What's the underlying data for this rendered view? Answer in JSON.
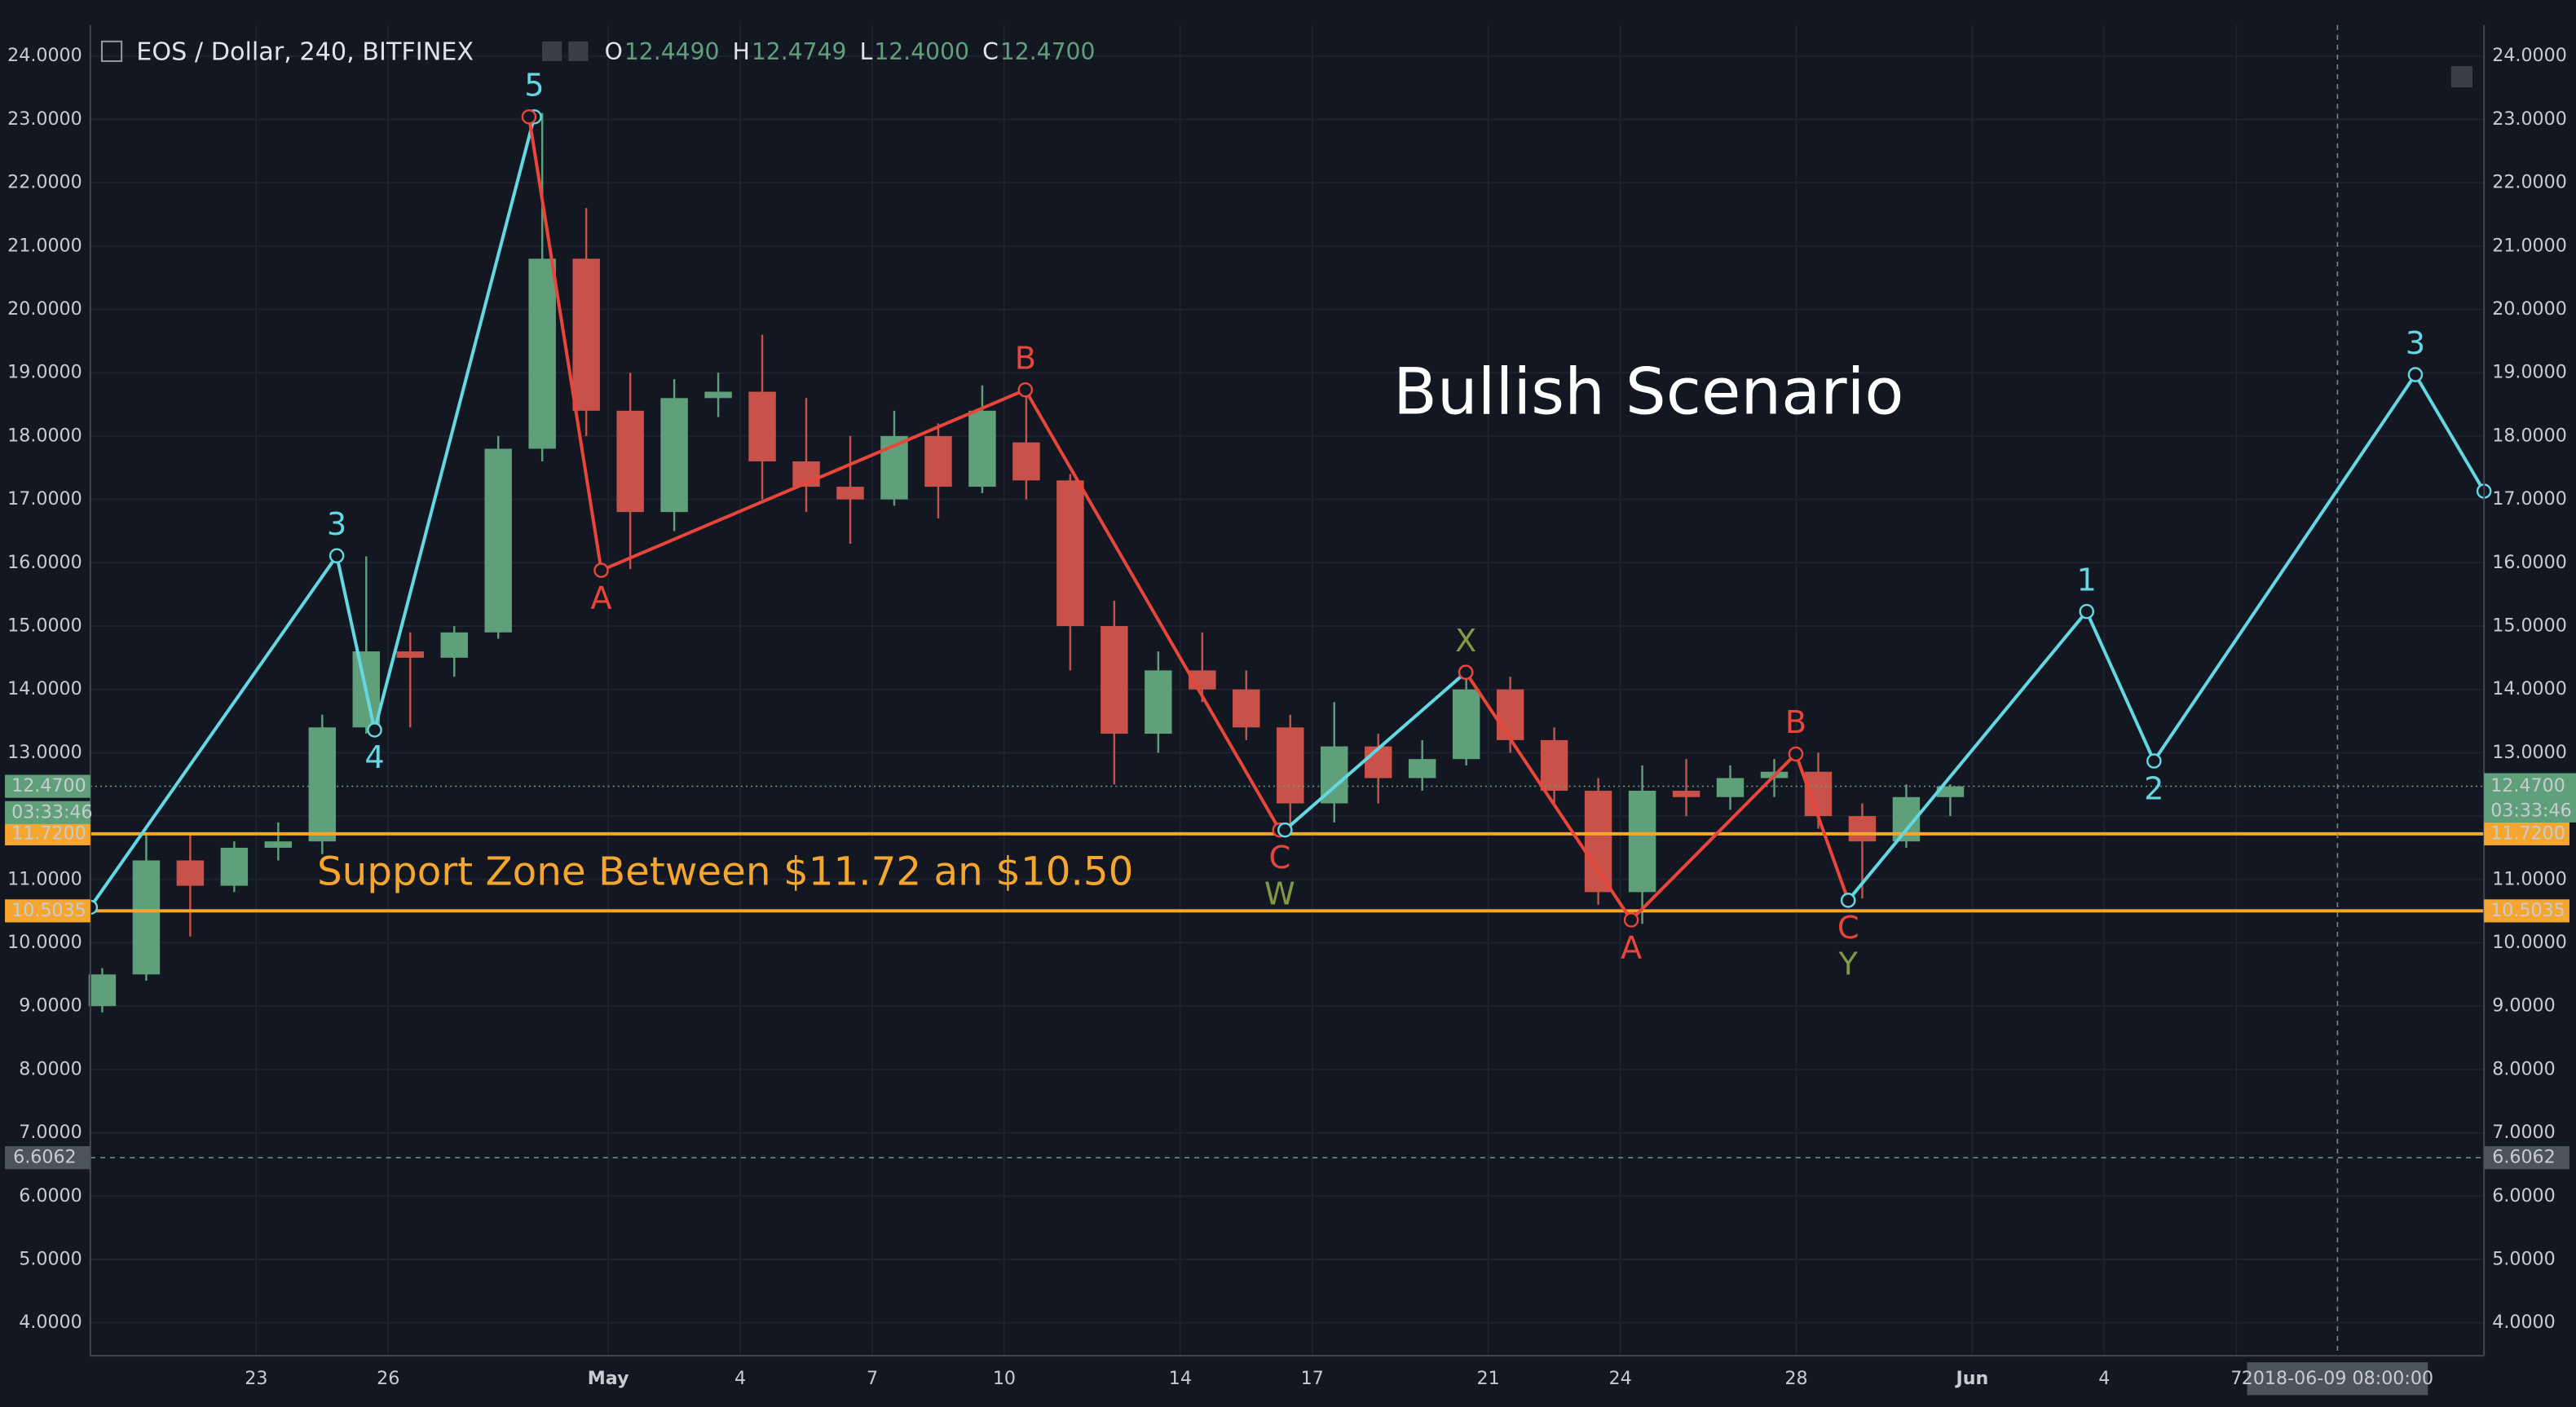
{
  "chart_data": {
    "type": "candlestick",
    "symbol": "EOS / Dollar, 240, BITFINEX",
    "ohlc_header": [
      {
        "key": "O",
        "value": "12.4490"
      },
      {
        "key": "H",
        "value": "12.4749"
      },
      {
        "key": "L",
        "value": "12.4000"
      },
      {
        "key": "C",
        "value": "12.4700"
      }
    ],
    "title": "Bullish Scenario",
    "annotation": "Support Zone Between $11.72 an $10.50",
    "up_color": "#5fa07a",
    "down_color": "#c8524a",
    "x": [
      19,
      20,
      21,
      22,
      23,
      24,
      25,
      26,
      27,
      28,
      29,
      30,
      31,
      32,
      33,
      34,
      35,
      36,
      37,
      38,
      39,
      40,
      41,
      42,
      43,
      44,
      45,
      46,
      47,
      48,
      49,
      50,
      51,
      52,
      53,
      54,
      55,
      56,
      57,
      58,
      59,
      60,
      61
    ],
    "open": [
      9.0,
      9.5,
      11.3,
      10.9,
      11.5,
      11.6,
      13.4,
      14.6,
      14.5,
      14.9,
      17.8,
      20.8,
      18.4,
      16.8,
      18.6,
      18.7,
      17.6,
      17.2,
      17.0,
      18.0,
      17.2,
      17.9,
      17.3,
      15.0,
      13.3,
      14.3,
      14.0,
      13.4,
      12.2,
      13.1,
      12.6,
      12.9,
      14.0,
      13.2,
      12.4,
      10.8,
      12.4,
      12.3,
      12.6,
      12.7,
      12.0,
      11.6,
      12.3
    ],
    "high": [
      9.6,
      11.7,
      11.7,
      11.6,
      11.9,
      13.6,
      16.1,
      14.9,
      15.0,
      18.0,
      23.1,
      21.6,
      19.0,
      18.9,
      19.0,
      19.6,
      18.6,
      18.0,
      18.4,
      18.2,
      18.8,
      18.7,
      17.4,
      15.4,
      14.6,
      14.9,
      14.3,
      13.6,
      13.8,
      13.3,
      13.2,
      14.2,
      14.2,
      13.4,
      12.6,
      12.8,
      12.9,
      12.8,
      12.9,
      13.0,
      12.2,
      12.5,
      12.5
    ],
    "low": [
      8.9,
      9.4,
      10.1,
      10.8,
      11.3,
      11.4,
      13.3,
      13.4,
      14.2,
      14.8,
      17.6,
      18.0,
      15.9,
      16.5,
      18.3,
      17.0,
      16.8,
      16.3,
      16.9,
      16.7,
      17.1,
      17.0,
      14.3,
      12.5,
      13.0,
      13.8,
      13.2,
      11.8,
      11.9,
      12.2,
      12.4,
      12.8,
      13.0,
      12.2,
      10.6,
      10.3,
      12.0,
      12.1,
      12.3,
      11.8,
      10.7,
      11.5,
      12.0
    ],
    "close": [
      9.5,
      11.3,
      10.9,
      11.5,
      11.6,
      13.4,
      14.6,
      14.5,
      14.9,
      17.8,
      20.8,
      18.4,
      16.8,
      18.6,
      18.7,
      17.6,
      17.2,
      17.0,
      18.0,
      17.2,
      18.4,
      17.3,
      15.0,
      13.3,
      14.3,
      14.0,
      13.4,
      12.2,
      13.1,
      12.6,
      12.9,
      14.0,
      13.2,
      12.4,
      10.8,
      12.4,
      12.3,
      12.6,
      12.7,
      12.0,
      11.6,
      12.3,
      12.47
    ],
    "waves": [
      {
        "color": "#63d8e3",
        "points": [
          {
            "x": 19.23,
            "y": 10.56
          },
          {
            "x": 24.83,
            "y": 16.11,
            "labels": [
              {
                "text": "3",
                "color": "#63d8e3"
              }
            ]
          },
          {
            "x": 25.69,
            "y": 13.36,
            "labels": [
              {
                "text": "4",
                "color": "#63d8e3"
              }
            ]
          },
          {
            "x": 29.32,
            "y": 23.04,
            "labels": [
              {
                "text": "5",
                "color": "#63d8e3"
              }
            ]
          }
        ]
      },
      {
        "color": "#e8463a",
        "points": [
          {
            "x": 29.2,
            "y": 23.04
          },
          {
            "x": 30.84,
            "y": 15.88,
            "labels": [
              {
                "text": "A",
                "color": "#e8463a"
              }
            ]
          },
          {
            "x": 40.48,
            "y": 18.73,
            "labels": [
              {
                "text": "B",
                "color": "#e8463a"
              }
            ]
          },
          {
            "x": 46.26,
            "y": 11.78,
            "labels": [
              {
                "text": "C",
                "color": "#e8463a"
              },
              {
                "text": "W",
                "color": "#7f9a45"
              }
            ]
          }
        ]
      },
      {
        "color": "#63d8e3",
        "points": [
          {
            "x": 46.38,
            "y": 11.78
          },
          {
            "x": 50.49,
            "y": 14.27,
            "labels": [
              {
                "text": "X",
                "color": "#7f9a45"
              }
            ]
          }
        ]
      },
      {
        "color": "#e8463a",
        "points": [
          {
            "x": 50.49,
            "y": 14.27
          },
          {
            "x": 54.25,
            "y": 10.36,
            "labels": [
              {
                "text": "A",
                "color": "#e8463a"
              }
            ]
          },
          {
            "x": 57.99,
            "y": 12.98,
            "labels": [
              {
                "text": "B",
                "color": "#e8463a"
              }
            ]
          },
          {
            "x": 59.18,
            "y": 10.67,
            "labels": [
              {
                "text": "C",
                "color": "#e8463a"
              },
              {
                "text": "Y",
                "color": "#7f9a45"
              }
            ]
          }
        ]
      },
      {
        "color": "#63d8e3",
        "points": [
          {
            "x": 59.18,
            "y": 10.67
          },
          {
            "x": 64.6,
            "y": 15.23,
            "labels": [
              {
                "text": "1",
                "color": "#63d8e3"
              }
            ]
          },
          {
            "x": 66.13,
            "y": 12.87,
            "labels": [
              {
                "text": "2",
                "color": "#63d8e3"
              }
            ]
          },
          {
            "x": 72.07,
            "y": 18.97,
            "labels": [
              {
                "text": "3",
                "color": "#63d8e3"
              }
            ]
          },
          {
            "x": 73.63,
            "y": 17.13
          }
        ]
      }
    ],
    "levels": [
      {
        "value": 11.72,
        "label": "11.7200",
        "color": "#f5a62f"
      },
      {
        "value": 10.5035,
        "label": "10.5035",
        "color": "#f5a62f"
      }
    ],
    "last_price": {
      "value": 12.47,
      "label": "12.4700",
      "countdown": "03:33:46",
      "color": "#5fa07a"
    },
    "crosshair": {
      "value": 6.6062,
      "label": "6.6062",
      "x": 70.3,
      "x_label": "2018-06-09 08:00:00"
    },
    "xlim": [
      19.23,
      73.63
    ],
    "ylim": [
      3.48,
      24.49
    ],
    "xticks": [
      23,
      26,
      {
        "value": 31,
        "label": "May"
      },
      {
        "value": 34,
        "label": "4"
      },
      {
        "value": 37,
        "label": "7"
      },
      {
        "value": 40,
        "label": "10"
      },
      {
        "value": 44,
        "label": "14"
      },
      {
        "value": 47,
        "label": "17"
      },
      {
        "value": 51,
        "label": "21"
      },
      {
        "value": 54,
        "label": "24"
      },
      {
        "value": 58,
        "label": "28"
      },
      {
        "value": 62,
        "label": "Jun"
      },
      {
        "value": 65,
        "label": "4"
      },
      {
        "value": 68,
        "label": "7"
      }
    ],
    "yticks": [
      {
        "value": 4,
        "label": "4.0000"
      },
      {
        "value": 5,
        "label": "5.0000"
      },
      {
        "value": 6,
        "label": "6.0000"
      },
      {
        "value": 7,
        "label": "7.0000"
      },
      {
        "value": 8,
        "label": "8.0000"
      },
      {
        "value": 9,
        "label": "9.0000"
      },
      {
        "value": 10,
        "label": "10.0000"
      },
      {
        "value": 11,
        "label": "11.0000"
      },
      {
        "value": 12,
        "label": "12.0000"
      },
      {
        "value": 13,
        "label": "13.0000"
      },
      {
        "value": 14,
        "label": "14.0000"
      },
      {
        "value": 15,
        "label": "15.0000"
      },
      {
        "value": 16,
        "label": "16.0000"
      },
      {
        "value": 17,
        "label": "17.0000"
      },
      {
        "value": 18,
        "label": "18.0000"
      },
      {
        "value": 19,
        "label": "19.0000"
      },
      {
        "value": 20,
        "label": "20.0000"
      },
      {
        "value": 21,
        "label": "21.0000"
      },
      {
        "value": 22,
        "label": "22.0000"
      },
      {
        "value": 23,
        "label": "23.0000"
      },
      {
        "value": 24,
        "label": "24.0000"
      }
    ],
    "grid": true
  }
}
